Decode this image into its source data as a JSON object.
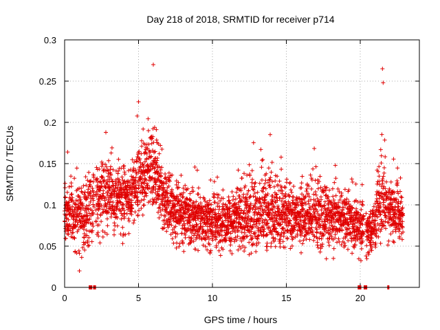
{
  "chart_data": {
    "type": "scatter",
    "title": "Day 218 of 2018, SRMTID for receiver p714",
    "xlabel": "GPS time / hours",
    "ylabel": "SRMTID / TECUs",
    "xlim": [
      0,
      24
    ],
    "ylim": [
      0,
      0.3
    ],
    "x_ticks": [
      0,
      5,
      10,
      15,
      20
    ],
    "x_tick_labels": [
      "0",
      "5",
      "10",
      "15",
      "20"
    ],
    "y_ticks": [
      0,
      0.05,
      0.1,
      0.15,
      0.2,
      0.25,
      0.3
    ],
    "y_tick_labels": [
      "0",
      "0.05",
      "0.1",
      "0.15",
      "0.2",
      "0.25",
      "0.3"
    ],
    "grid": true,
    "marker": "+",
    "series": [
      {
        "name": "SRMTID",
        "color": "#e00000",
        "sampling_interval_hours": 0.01,
        "envelope": [
          {
            "x": 0.0,
            "mean": 0.095,
            "min": 0.04,
            "max": 0.145
          },
          {
            "x": 0.3,
            "mean": 0.09,
            "min": 0.045,
            "max": 0.175
          },
          {
            "x": 0.6,
            "mean": 0.085,
            "min": 0.03,
            "max": 0.15
          },
          {
            "x": 1.0,
            "mean": 0.09,
            "min": 0.02,
            "max": 0.16
          },
          {
            "x": 1.5,
            "mean": 0.09,
            "min": 0.04,
            "max": 0.155
          },
          {
            "x": 2.0,
            "mean": 0.1,
            "min": 0.035,
            "max": 0.16
          },
          {
            "x": 2.5,
            "mean": 0.11,
            "min": 0.04,
            "max": 0.2
          },
          {
            "x": 3.0,
            "mean": 0.115,
            "min": 0.05,
            "max": 0.19
          },
          {
            "x": 3.5,
            "mean": 0.11,
            "min": 0.05,
            "max": 0.195
          },
          {
            "x": 4.0,
            "mean": 0.115,
            "min": 0.045,
            "max": 0.17
          },
          {
            "x": 4.5,
            "mean": 0.11,
            "min": 0.06,
            "max": 0.16
          },
          {
            "x": 5.0,
            "mean": 0.13,
            "min": 0.07,
            "max": 0.225
          },
          {
            "x": 5.5,
            "mean": 0.14,
            "min": 0.08,
            "max": 0.215
          },
          {
            "x": 6.0,
            "mean": 0.135,
            "min": 0.07,
            "max": 0.27
          },
          {
            "x": 6.5,
            "mean": 0.12,
            "min": 0.05,
            "max": 0.18
          },
          {
            "x": 7.0,
            "mean": 0.1,
            "min": 0.045,
            "max": 0.16
          },
          {
            "x": 8.0,
            "mean": 0.09,
            "min": 0.035,
            "max": 0.155
          },
          {
            "x": 9.0,
            "mean": 0.085,
            "min": 0.035,
            "max": 0.145
          },
          {
            "x": 10.0,
            "mean": 0.08,
            "min": 0.03,
            "max": 0.14
          },
          {
            "x": 11.0,
            "mean": 0.08,
            "min": 0.035,
            "max": 0.14
          },
          {
            "x": 12.0,
            "mean": 0.085,
            "min": 0.025,
            "max": 0.17
          },
          {
            "x": 13.0,
            "mean": 0.085,
            "min": 0.03,
            "max": 0.18
          },
          {
            "x": 14.0,
            "mean": 0.09,
            "min": 0.035,
            "max": 0.195
          },
          {
            "x": 15.0,
            "mean": 0.09,
            "min": 0.035,
            "max": 0.155
          },
          {
            "x": 16.0,
            "mean": 0.085,
            "min": 0.035,
            "max": 0.15
          },
          {
            "x": 17.0,
            "mean": 0.085,
            "min": 0.035,
            "max": 0.185
          },
          {
            "x": 18.0,
            "mean": 0.085,
            "min": 0.03,
            "max": 0.15
          },
          {
            "x": 19.0,
            "mean": 0.085,
            "min": 0.035,
            "max": 0.145
          },
          {
            "x": 20.0,
            "mean": 0.075,
            "min": 0.025,
            "max": 0.145
          },
          {
            "x": 20.5,
            "mean": 0.07,
            "min": 0.025,
            "max": 0.11
          },
          {
            "x": 21.0,
            "mean": 0.075,
            "min": 0.03,
            "max": 0.13
          },
          {
            "x": 21.5,
            "mean": 0.11,
            "min": 0.05,
            "max": 0.265
          },
          {
            "x": 22.0,
            "mean": 0.095,
            "min": 0.04,
            "max": 0.16
          },
          {
            "x": 22.5,
            "mean": 0.09,
            "min": 0.04,
            "max": 0.16
          },
          {
            "x": 22.9,
            "mean": 0.085,
            "min": 0.05,
            "max": 0.12
          }
        ],
        "gaps_hours": [
          [
            1.8,
            1.85
          ],
          [
            2.0,
            2.1
          ],
          [
            20.25,
            20.4
          ],
          [
            21.8,
            21.85
          ]
        ],
        "highlight_points": [
          {
            "x": 6.0,
            "y": 0.27
          },
          {
            "x": 21.5,
            "y": 0.265
          },
          {
            "x": 21.55,
            "y": 0.248
          },
          {
            "x": 5.0,
            "y": 0.225
          },
          {
            "x": 1.0,
            "y": 0.02
          }
        ]
      }
    ],
    "baseline_markers_x": [
      1.7,
      1.8,
      2.0,
      2.05,
      19.9,
      20.0,
      20.3,
      20.35,
      20.4,
      21.9
    ]
  }
}
